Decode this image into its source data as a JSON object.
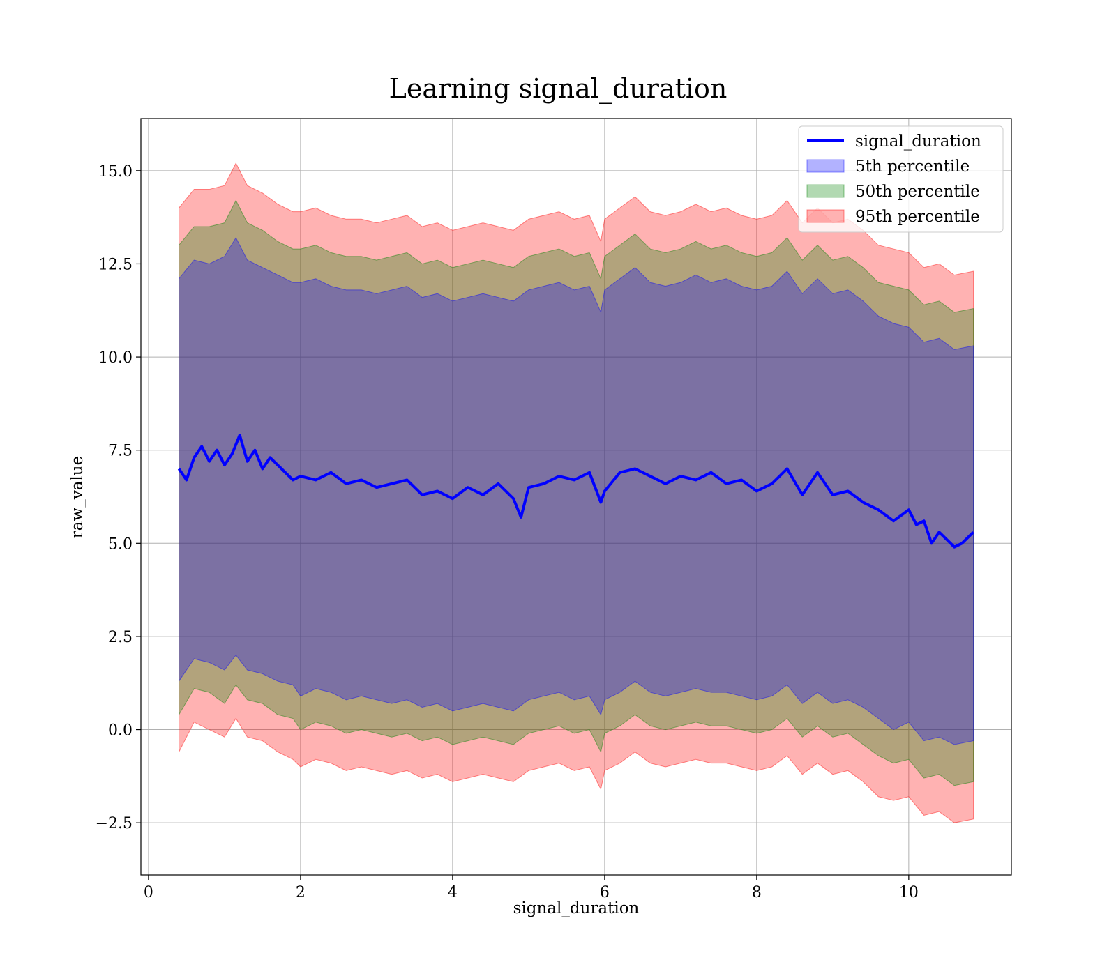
{
  "chart_data": {
    "type": "line",
    "title": "Learning signal_duration",
    "xlabel": "signal_duration",
    "ylabel": "raw_value",
    "xlim": [
      -0.1,
      11.35
    ],
    "ylim": [
      -3.9,
      16.4
    ],
    "x_ticks": [
      0,
      2,
      4,
      6,
      8,
      10
    ],
    "x_tick_labels": [
      "0",
      "2",
      "4",
      "6",
      "8",
      "10"
    ],
    "y_ticks": [
      -2.5,
      0.0,
      2.5,
      5.0,
      7.5,
      10.0,
      12.5,
      15.0
    ],
    "y_tick_labels": [
      "−2.5",
      "0.0",
      "2.5",
      "5.0",
      "7.5",
      "10.0",
      "12.5",
      "15.0"
    ],
    "grid": true,
    "legend_position": "top-right",
    "colors": {
      "line": "#0000ff",
      "band_5th": "#0000ff",
      "band_50th": "#008000",
      "band_95th": "#ff0000"
    },
    "series": [
      {
        "name": "signal_duration",
        "kind": "line",
        "x": [
          0.4,
          0.5,
          0.6,
          0.7,
          0.8,
          0.9,
          1.0,
          1.1,
          1.2,
          1.3,
          1.4,
          1.5,
          1.6,
          1.7,
          1.8,
          1.9,
          2.0,
          2.2,
          2.4,
          2.6,
          2.8,
          3.0,
          3.2,
          3.4,
          3.6,
          3.8,
          4.0,
          4.2,
          4.4,
          4.6,
          4.8,
          4.9,
          5.0,
          5.2,
          5.4,
          5.6,
          5.8,
          5.95,
          6.0,
          6.2,
          6.4,
          6.6,
          6.8,
          7.0,
          7.2,
          7.4,
          7.6,
          7.8,
          8.0,
          8.2,
          8.4,
          8.6,
          8.8,
          9.0,
          9.2,
          9.4,
          9.6,
          9.8,
          10.0,
          10.1,
          10.2,
          10.3,
          10.4,
          10.5,
          10.6,
          10.7,
          10.85
        ],
        "values": [
          7.0,
          6.7,
          7.3,
          7.6,
          7.2,
          7.5,
          7.1,
          7.4,
          7.9,
          7.2,
          7.5,
          7.0,
          7.3,
          7.1,
          6.9,
          6.7,
          6.8,
          6.7,
          6.9,
          6.6,
          6.7,
          6.5,
          6.6,
          6.7,
          6.3,
          6.4,
          6.2,
          6.5,
          6.3,
          6.6,
          6.2,
          5.7,
          6.5,
          6.6,
          6.8,
          6.7,
          6.9,
          6.1,
          6.4,
          6.9,
          7.0,
          6.8,
          6.6,
          6.8,
          6.7,
          6.9,
          6.6,
          6.7,
          6.4,
          6.6,
          7.0,
          6.3,
          6.9,
          6.3,
          6.4,
          6.1,
          5.9,
          5.6,
          5.9,
          5.5,
          5.6,
          5.0,
          5.3,
          5.1,
          4.9,
          5.0,
          5.3
        ]
      },
      {
        "name": "5th percentile",
        "kind": "band",
        "x": [
          0.4,
          0.6,
          0.8,
          1.0,
          1.15,
          1.3,
          1.5,
          1.7,
          1.9,
          2.0,
          2.2,
          2.4,
          2.6,
          2.8,
          3.0,
          3.2,
          3.4,
          3.6,
          3.8,
          4.0,
          4.2,
          4.4,
          4.6,
          4.8,
          5.0,
          5.2,
          5.4,
          5.6,
          5.8,
          5.95,
          6.0,
          6.2,
          6.4,
          6.6,
          6.8,
          7.0,
          7.2,
          7.4,
          7.6,
          7.8,
          8.0,
          8.2,
          8.4,
          8.6,
          8.8,
          9.0,
          9.2,
          9.4,
          9.6,
          9.8,
          10.0,
          10.2,
          10.4,
          10.6,
          10.85
        ],
        "lower": [
          1.3,
          1.9,
          1.8,
          1.6,
          2.0,
          1.6,
          1.5,
          1.3,
          1.2,
          0.9,
          1.1,
          1.0,
          0.8,
          0.9,
          0.8,
          0.7,
          0.8,
          0.6,
          0.7,
          0.5,
          0.6,
          0.7,
          0.6,
          0.5,
          0.8,
          0.9,
          1.0,
          0.8,
          0.9,
          0.4,
          0.8,
          1.0,
          1.3,
          1.0,
          0.9,
          1.0,
          1.1,
          1.0,
          1.0,
          0.9,
          0.8,
          0.9,
          1.2,
          0.7,
          1.0,
          0.7,
          0.8,
          0.6,
          0.3,
          0.0,
          0.2,
          -0.3,
          -0.2,
          -0.4,
          -0.3
        ],
        "upper": [
          12.1,
          12.6,
          12.5,
          12.7,
          13.2,
          12.6,
          12.4,
          12.2,
          12.0,
          12.0,
          12.1,
          11.9,
          11.8,
          11.8,
          11.7,
          11.8,
          11.9,
          11.6,
          11.7,
          11.5,
          11.6,
          11.7,
          11.6,
          11.5,
          11.8,
          11.9,
          12.0,
          11.8,
          11.9,
          11.2,
          11.8,
          12.1,
          12.4,
          12.0,
          11.9,
          12.0,
          12.2,
          12.0,
          12.1,
          11.9,
          11.8,
          11.9,
          12.3,
          11.7,
          12.1,
          11.7,
          11.8,
          11.5,
          11.1,
          10.9,
          10.8,
          10.4,
          10.5,
          10.2,
          10.3
        ]
      },
      {
        "name": "50th percentile",
        "kind": "band",
        "x": [
          0.4,
          0.6,
          0.8,
          1.0,
          1.15,
          1.3,
          1.5,
          1.7,
          1.9,
          2.0,
          2.2,
          2.4,
          2.6,
          2.8,
          3.0,
          3.2,
          3.4,
          3.6,
          3.8,
          4.0,
          4.2,
          4.4,
          4.6,
          4.8,
          5.0,
          5.2,
          5.4,
          5.6,
          5.8,
          5.95,
          6.0,
          6.2,
          6.4,
          6.6,
          6.8,
          7.0,
          7.2,
          7.4,
          7.6,
          7.8,
          8.0,
          8.2,
          8.4,
          8.6,
          8.8,
          9.0,
          9.2,
          9.4,
          9.6,
          9.8,
          10.0,
          10.2,
          10.4,
          10.6,
          10.85
        ],
        "lower": [
          0.4,
          1.1,
          1.0,
          0.7,
          1.2,
          0.8,
          0.7,
          0.4,
          0.3,
          0.0,
          0.2,
          0.1,
          -0.1,
          0.0,
          -0.1,
          -0.2,
          -0.1,
          -0.3,
          -0.2,
          -0.4,
          -0.3,
          -0.2,
          -0.3,
          -0.4,
          -0.1,
          0.0,
          0.1,
          -0.1,
          0.0,
          -0.6,
          -0.1,
          0.1,
          0.4,
          0.1,
          0.0,
          0.1,
          0.2,
          0.1,
          0.1,
          0.0,
          -0.1,
          0.0,
          0.3,
          -0.2,
          0.1,
          -0.2,
          -0.1,
          -0.4,
          -0.7,
          -0.9,
          -0.8,
          -1.3,
          -1.2,
          -1.5,
          -1.4
        ],
        "upper": [
          13.0,
          13.5,
          13.5,
          13.6,
          14.2,
          13.6,
          13.4,
          13.1,
          12.9,
          12.9,
          13.0,
          12.8,
          12.7,
          12.7,
          12.6,
          12.7,
          12.8,
          12.5,
          12.6,
          12.4,
          12.5,
          12.6,
          12.5,
          12.4,
          12.7,
          12.8,
          12.9,
          12.7,
          12.8,
          12.1,
          12.7,
          13.0,
          13.3,
          12.9,
          12.8,
          12.9,
          13.1,
          12.9,
          13.0,
          12.8,
          12.7,
          12.8,
          13.2,
          12.6,
          13.0,
          12.6,
          12.7,
          12.4,
          12.0,
          11.9,
          11.8,
          11.4,
          11.5,
          11.2,
          11.3
        ]
      },
      {
        "name": "95th percentile",
        "kind": "band",
        "x": [
          0.4,
          0.6,
          0.8,
          1.0,
          1.15,
          1.3,
          1.5,
          1.7,
          1.9,
          2.0,
          2.2,
          2.4,
          2.6,
          2.8,
          3.0,
          3.2,
          3.4,
          3.6,
          3.8,
          4.0,
          4.2,
          4.4,
          4.6,
          4.8,
          5.0,
          5.2,
          5.4,
          5.6,
          5.8,
          5.95,
          6.0,
          6.2,
          6.4,
          6.6,
          6.8,
          7.0,
          7.2,
          7.4,
          7.6,
          7.8,
          8.0,
          8.2,
          8.4,
          8.6,
          8.8,
          9.0,
          9.2,
          9.4,
          9.6,
          9.8,
          10.0,
          10.2,
          10.4,
          10.6,
          10.85
        ],
        "lower": [
          -0.6,
          0.2,
          0.0,
          -0.2,
          0.3,
          -0.2,
          -0.3,
          -0.6,
          -0.8,
          -1.0,
          -0.8,
          -0.9,
          -1.1,
          -1.0,
          -1.1,
          -1.2,
          -1.1,
          -1.3,
          -1.2,
          -1.4,
          -1.3,
          -1.2,
          -1.3,
          -1.4,
          -1.1,
          -1.0,
          -0.9,
          -1.1,
          -1.0,
          -1.6,
          -1.1,
          -0.9,
          -0.6,
          -0.9,
          -1.0,
          -0.9,
          -0.8,
          -0.9,
          -0.9,
          -1.0,
          -1.1,
          -1.0,
          -0.7,
          -1.2,
          -0.9,
          -1.2,
          -1.1,
          -1.4,
          -1.8,
          -1.9,
          -1.8,
          -2.3,
          -2.2,
          -2.5,
          -2.4
        ],
        "upper": [
          14.0,
          14.5,
          14.5,
          14.6,
          15.2,
          14.6,
          14.4,
          14.1,
          13.9,
          13.9,
          14.0,
          13.8,
          13.7,
          13.7,
          13.6,
          13.7,
          13.8,
          13.5,
          13.6,
          13.4,
          13.5,
          13.6,
          13.5,
          13.4,
          13.7,
          13.8,
          13.9,
          13.7,
          13.8,
          13.1,
          13.7,
          14.0,
          14.3,
          13.9,
          13.8,
          13.9,
          14.1,
          13.9,
          14.0,
          13.8,
          13.7,
          13.8,
          14.2,
          13.6,
          14.0,
          13.6,
          13.7,
          13.4,
          13.0,
          12.9,
          12.8,
          12.4,
          12.5,
          12.2,
          12.3
        ]
      }
    ]
  }
}
